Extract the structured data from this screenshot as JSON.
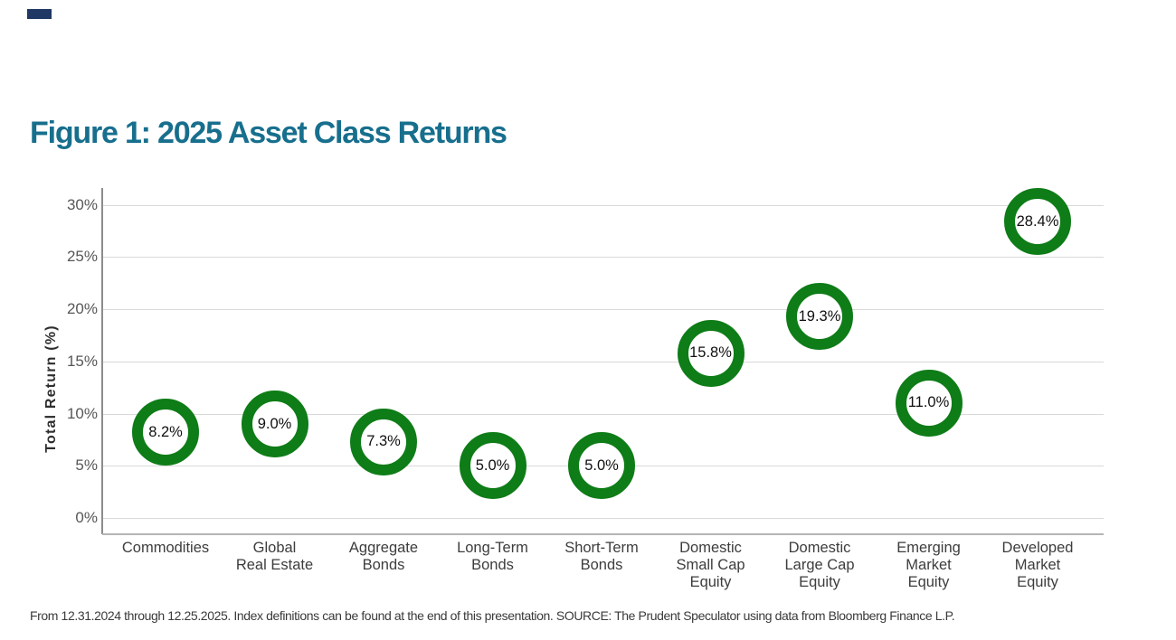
{
  "accent_bar": {
    "color": "#1F3864"
  },
  "header": {
    "title": "Figure 1: 2025 Asset Class Returns",
    "title_color": "#176F8D"
  },
  "footer": {
    "text": "From 12.31.2024 through 12.25.2025. Index definitions can be found at the end of this presentation. SOURCE: The Prudent Speculator using data from Bloomberg Finance L.P."
  },
  "chart_data": {
    "type": "scatter",
    "marker": "donut-circle",
    "marker_color": "#0E7C17",
    "title": "Figure 1: 2025 Asset Class Returns",
    "xlabel": "",
    "ylabel": "Total Return (%)",
    "ylim": [
      0,
      30
    ],
    "ytick_labels": [
      "0%",
      "5%",
      "10%",
      "15%",
      "20%",
      "25%",
      "30%"
    ],
    "ytick_values": [
      0,
      5,
      10,
      15,
      20,
      25,
      30
    ],
    "grid": true,
    "legend": "none",
    "categories": [
      [
        "Commodities"
      ],
      [
        "Global",
        "Real Estate"
      ],
      [
        "Aggregate",
        "Bonds"
      ],
      [
        "Long-Term",
        "Bonds"
      ],
      [
        "Short-Term",
        "Bonds"
      ],
      [
        "Domestic",
        "Small Cap",
        "Equity"
      ],
      [
        "Domestic",
        "Large Cap",
        "Equity"
      ],
      [
        "Emerging",
        "Market",
        "Equity"
      ],
      [
        "Developed",
        "Market",
        "Equity"
      ]
    ],
    "values": [
      8.2,
      9.0,
      7.3,
      5.0,
      5.0,
      15.8,
      19.3,
      11.0,
      28.4
    ],
    "point_labels": [
      "8.2%",
      "9.0%",
      "7.3%",
      "5.0%",
      "5.0%",
      "15.8%",
      "19.3%",
      "11.0%",
      "28.4%"
    ]
  }
}
